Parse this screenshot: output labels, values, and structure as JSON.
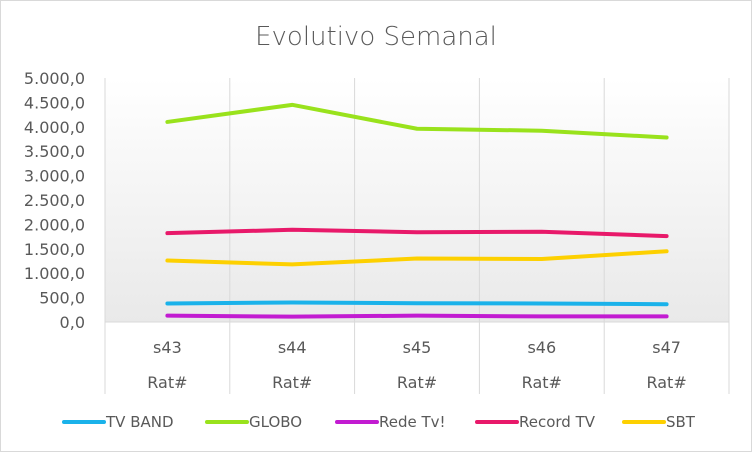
{
  "chart_data": {
    "type": "line",
    "title": "Evolutivo Semanal",
    "categories": [
      "s43",
      "s44",
      "s45",
      "s46",
      "s47"
    ],
    "category_sublabel": "Rat#",
    "y_ticks": [
      "0,0",
      "500,0",
      "1.000,0",
      "1.500,0",
      "2.000,0",
      "2.500,0",
      "3.000,0",
      "3.500,0",
      "4.000,0",
      "4.500,0",
      "5.000,0"
    ],
    "ylim": [
      0,
      5000
    ],
    "grid": "vertical",
    "legend_position": "bottom",
    "series": [
      {
        "name": "TV BAND",
        "color": "#1ab2ea",
        "values": [
          380,
          400,
          385,
          380,
          365
        ]
      },
      {
        "name": "GLOBO",
        "color": "#99e21c",
        "values": [
          4100,
          4450,
          3960,
          3920,
          3780
        ]
      },
      {
        "name": "Rede Tv!",
        "color": "#c21bd1",
        "values": [
          130,
          110,
          130,
          115,
          115
        ]
      },
      {
        "name": "Record TV",
        "color": "#e8196a",
        "values": [
          1820,
          1890,
          1840,
          1850,
          1760
        ]
      },
      {
        "name": "SBT",
        "color": "#fdd000",
        "values": [
          1260,
          1180,
          1300,
          1290,
          1450
        ]
      }
    ]
  }
}
